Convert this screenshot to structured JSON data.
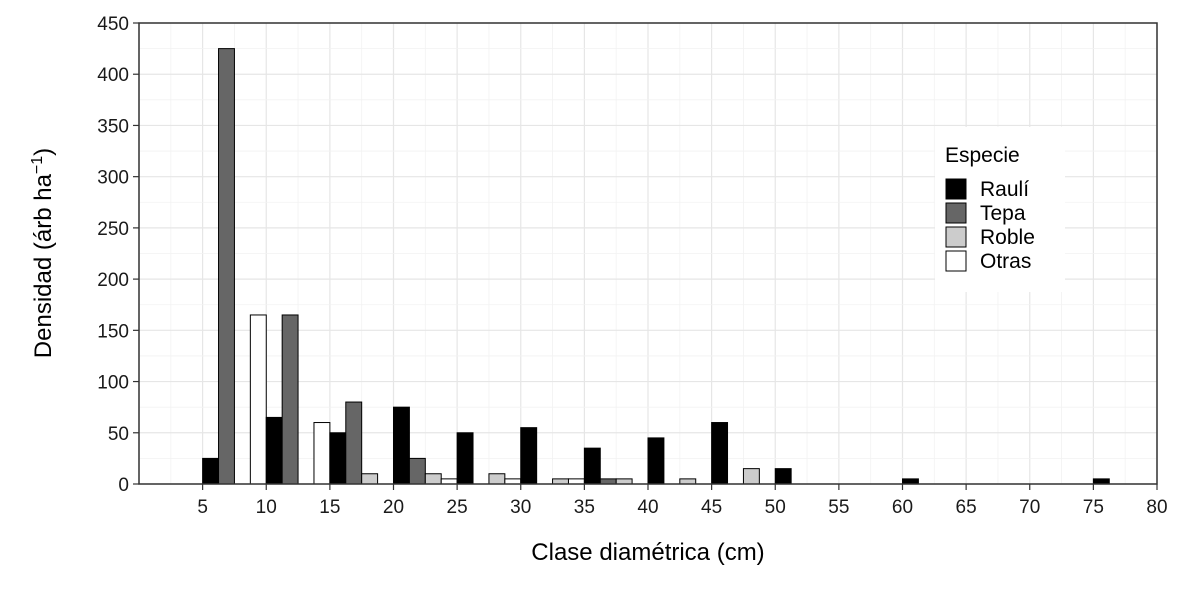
{
  "chart_data": {
    "type": "bar",
    "xlabel": "Clase diamétrica (cm)",
    "ylabel": "Densidad (árb ha",
    "ylabel_sup": "−1",
    "ylabel_close": ")",
    "xlim": [
      0,
      80
    ],
    "ylim": [
      0,
      450
    ],
    "xticks": [
      5,
      10,
      15,
      20,
      25,
      30,
      35,
      40,
      45,
      50,
      55,
      60,
      65,
      70,
      75,
      80
    ],
    "yticks": [
      0,
      50,
      100,
      150,
      200,
      250,
      300,
      350,
      400,
      450
    ],
    "grid": true,
    "legend_title": "Especie",
    "legend_position": "right",
    "categories": [
      7.5,
      12.5,
      17.5,
      22.5,
      27.5,
      32.5,
      37.5,
      42.5,
      47.5,
      52.5,
      57.5,
      62.5,
      67.5,
      72.5,
      77.5
    ],
    "series": [
      {
        "name": "Raulí",
        "color": "#000000",
        "values": [
          25,
          65,
          50,
          75,
          50,
          55,
          35,
          45,
          60,
          15,
          0,
          5,
          0,
          0,
          5
        ]
      },
      {
        "name": "Tepa",
        "color": "#666666",
        "values": [
          425,
          165,
          80,
          25,
          0,
          0,
          5,
          0,
          0,
          0,
          0,
          0,
          0,
          0,
          0
        ]
      },
      {
        "name": "Roble",
        "color": "#cccccc",
        "values": [
          0,
          0,
          10,
          10,
          10,
          5,
          5,
          5,
          15,
          0,
          0,
          0,
          0,
          0,
          0
        ]
      },
      {
        "name": "Otras",
        "color": "#ffffff",
        "values": [
          165,
          60,
          0,
          5,
          5,
          5,
          0,
          0,
          0,
          0,
          0,
          0,
          0,
          0,
          0
        ]
      }
    ]
  }
}
